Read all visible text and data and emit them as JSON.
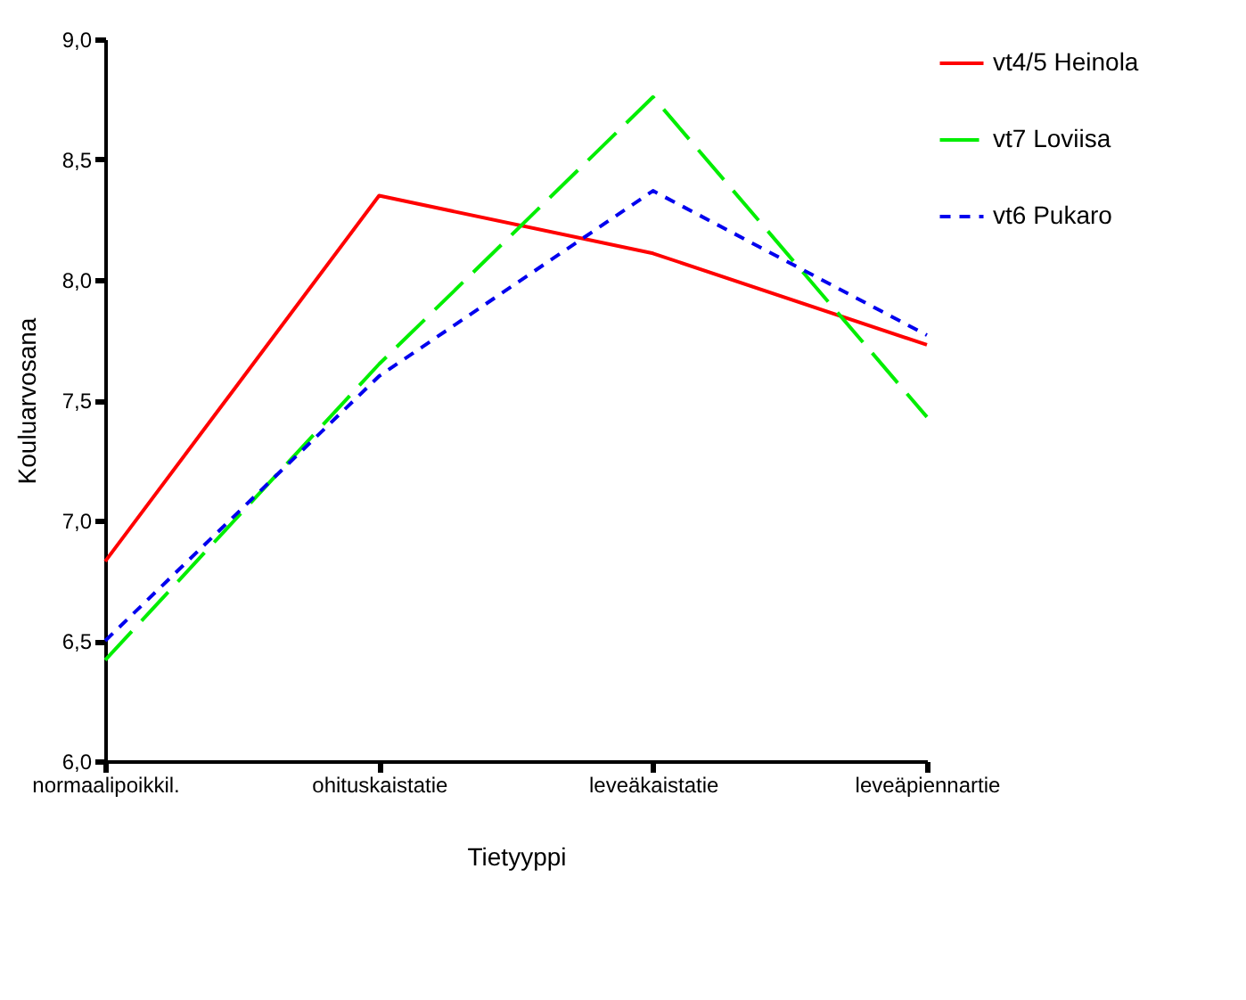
{
  "chart_data": {
    "type": "line",
    "xlabel": "Tietyyppi",
    "ylabel": "Kouluarvosana",
    "categories": [
      "normaalipoikkil.",
      "ohituskaistatie",
      "leveäkaistatie",
      "leveäpiennartie"
    ],
    "series": [
      {
        "name": "vt4/5 Heinola",
        "color": "#ff0000",
        "line_style": "solid",
        "values": [
          6.83,
          8.35,
          8.11,
          7.73
        ]
      },
      {
        "name": "vt7 Loviisa",
        "color": "#00ee00",
        "line_style": "dashed",
        "values": [
          6.42,
          7.65,
          8.76,
          7.43
        ]
      },
      {
        "name": "vt6 Pukaro",
        "color": "#0000ee",
        "line_style": "dotted",
        "values": [
          6.5,
          7.6,
          8.37,
          7.77
        ]
      }
    ],
    "ylim": [
      6,
      9
    ],
    "yticks": [
      {
        "value": 6,
        "label": "6,0"
      },
      {
        "value": 6.5,
        "label": "6,5"
      },
      {
        "value": 7,
        "label": "7,0"
      },
      {
        "value": 7.5,
        "label": "7,5"
      },
      {
        "value": 8,
        "label": "8,0"
      },
      {
        "value": 8.5,
        "label": "8,5"
      },
      {
        "value": 9,
        "label": "9,0"
      }
    ],
    "grid": false,
    "legend": "right",
    "marker": "none"
  }
}
